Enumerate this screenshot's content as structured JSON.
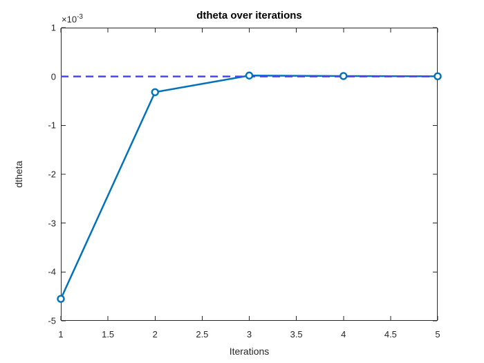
{
  "figure": {
    "background": "#FFFFFF"
  },
  "chart_data": {
    "type": "line",
    "title": "dtheta over iterations",
    "xlabel": "Iterations",
    "ylabel": "dtheta",
    "y_multiplier_base": "×10",
    "y_multiplier_power": "-3",
    "x": [
      1,
      2,
      3,
      4,
      5
    ],
    "series": [
      {
        "name": "dtheta",
        "values": [
          -0.00455,
          -0.00032,
          2e-05,
          1e-05,
          5e-06
        ],
        "color": "#0072BD",
        "line_style": "solid",
        "marker": "circle"
      },
      {
        "name": "zero-reference-line",
        "values": [
          0,
          0,
          0,
          0,
          0
        ],
        "color": "#4A44EE",
        "line_style": "dashed",
        "marker": null
      }
    ],
    "xlim": [
      1,
      5
    ],
    "ylim": [
      -0.005,
      0.001
    ],
    "xticks": [
      1,
      1.5,
      2,
      2.5,
      3,
      3.5,
      4,
      4.5,
      5
    ],
    "xtick_labels": [
      "1",
      "1.5",
      "2",
      "2.5",
      "3",
      "3.5",
      "4",
      "4.5",
      "5"
    ],
    "yticks": [
      -0.005,
      -0.004,
      -0.003,
      -0.002,
      -0.001,
      0,
      0.001
    ],
    "ytick_labels": [
      "-5",
      "-4",
      "-3",
      "-2",
      "-1",
      "0",
      "1"
    ],
    "grid": false,
    "legend": null,
    "axis_color": "#262626",
    "text_color": "#262626"
  }
}
